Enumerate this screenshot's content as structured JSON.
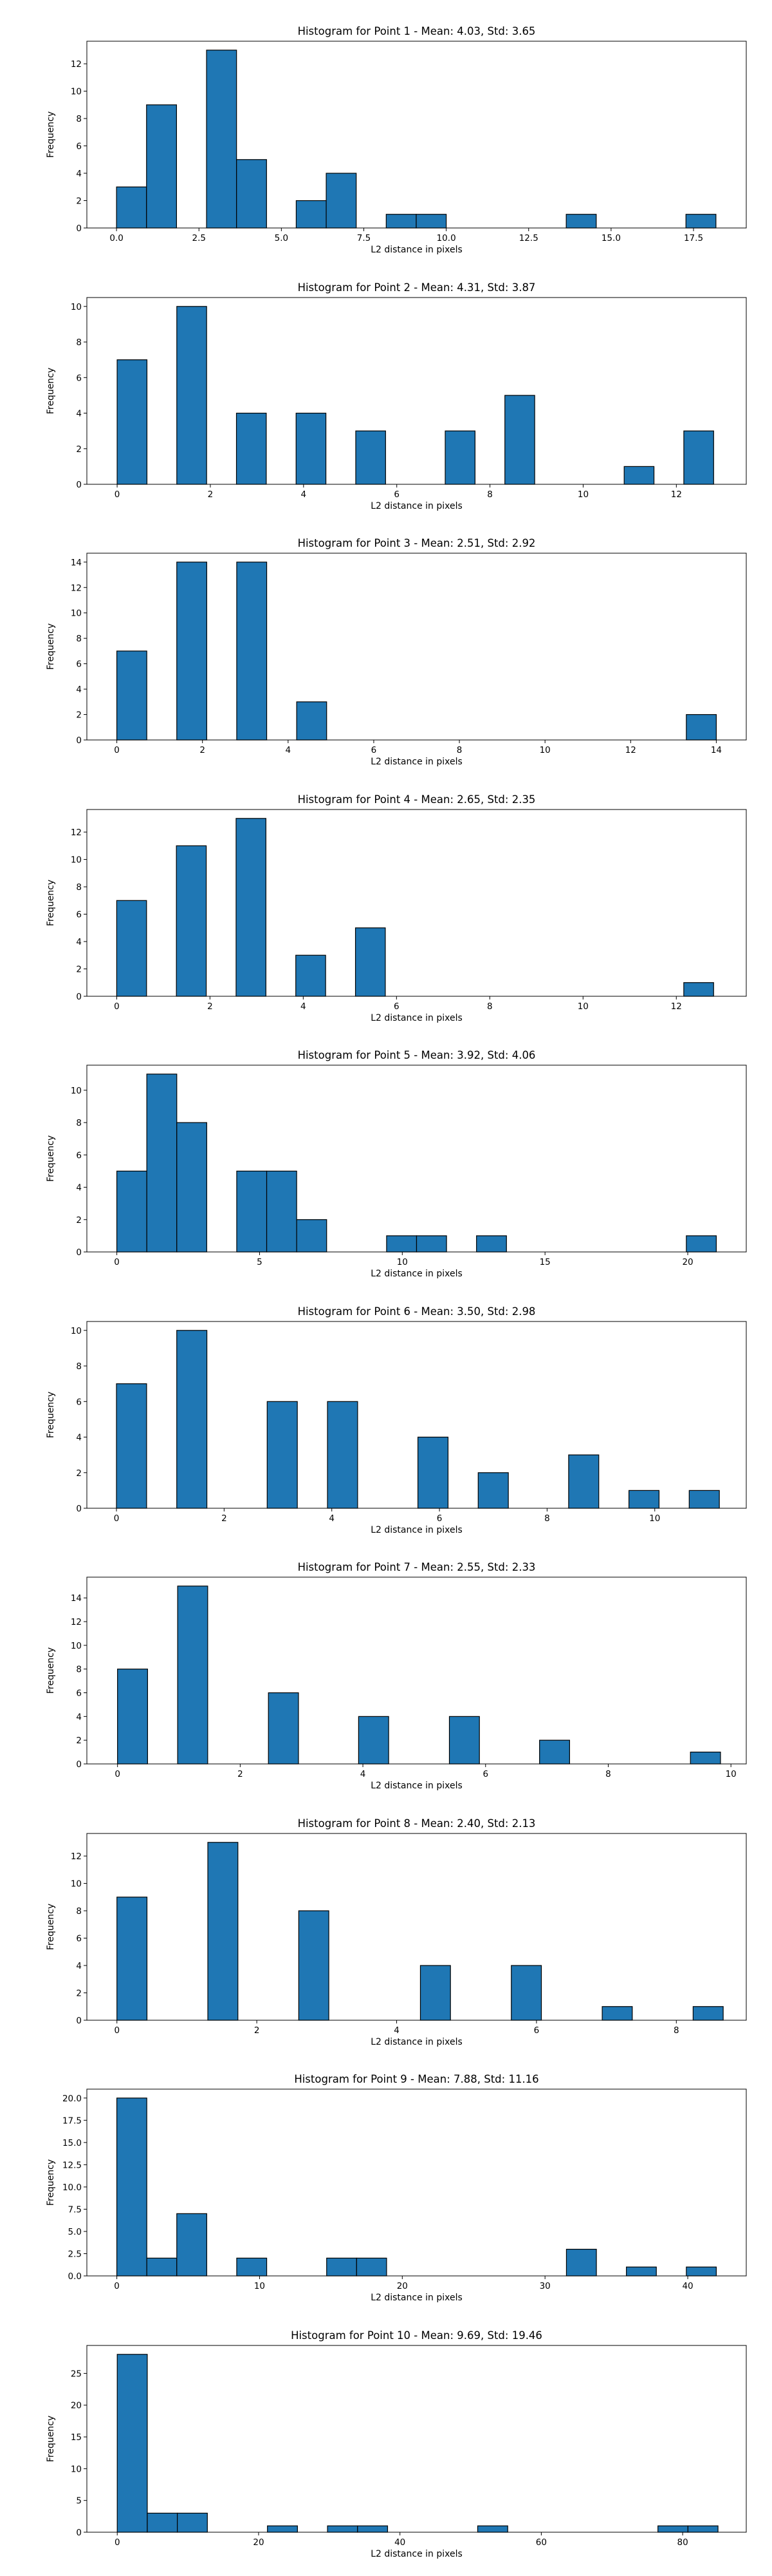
{
  "chart_data": [
    {
      "type": "bar",
      "title": "Histogram for Point 1 - Mean: 4.03, Std: 3.65",
      "xlabel": "L2 distance in pixels",
      "ylabel": "Frequency",
      "xlim": [
        -0.9,
        19.1
      ],
      "ylim": [
        0,
        13.65
      ],
      "xticks": [
        0,
        2.5,
        5,
        7.5,
        10,
        12.5,
        15,
        17.5
      ],
      "xtick_labels": [
        "0.0",
        "2.5",
        "5.0",
        "7.5",
        "10.0",
        "12.5",
        "15.0",
        "17.5"
      ],
      "yticks": [
        0,
        2,
        4,
        6,
        8,
        10,
        12
      ],
      "bins": [
        [
          0,
          0.91,
          3
        ],
        [
          0.91,
          1.82,
          9
        ],
        [
          2.73,
          3.64,
          13
        ],
        [
          3.64,
          4.55,
          5
        ],
        [
          5.45,
          6.36,
          2
        ],
        [
          6.36,
          7.27,
          4
        ],
        [
          8.18,
          9.09,
          1
        ],
        [
          9.09,
          10.0,
          1
        ],
        [
          13.64,
          14.55,
          1
        ],
        [
          17.27,
          18.18,
          1
        ]
      ]
    },
    {
      "type": "bar",
      "title": "Histogram for Point 2 - Mean: 4.31, Std: 3.87",
      "xlabel": "L2 distance in pixels",
      "ylabel": "Frequency",
      "xlim": [
        -0.65,
        13.5
      ],
      "ylim": [
        0,
        10.5
      ],
      "xticks": [
        0,
        2,
        4,
        6,
        8,
        10,
        12
      ],
      "xtick_labels": [
        "0",
        "2",
        "4",
        "6",
        "8",
        "10",
        "12"
      ],
      "yticks": [
        0,
        2,
        4,
        6,
        8,
        10
      ],
      "bins": [
        [
          0,
          0.64,
          7
        ],
        [
          1.28,
          1.92,
          10
        ],
        [
          2.56,
          3.2,
          4
        ],
        [
          3.84,
          4.48,
          4
        ],
        [
          5.12,
          5.76,
          3
        ],
        [
          7.04,
          7.68,
          3
        ],
        [
          8.32,
          8.96,
          5
        ],
        [
          10.88,
          11.52,
          1
        ],
        [
          12.16,
          12.8,
          3
        ]
      ]
    },
    {
      "type": "bar",
      "title": "Histogram for Point 3 - Mean: 2.51, Std: 2.92",
      "xlabel": "L2 distance in pixels",
      "ylabel": "Frequency",
      "xlim": [
        -0.7,
        14.7
      ],
      "ylim": [
        0,
        14.7
      ],
      "xticks": [
        0,
        2,
        4,
        6,
        8,
        10,
        12,
        14
      ],
      "xtick_labels": [
        "0",
        "2",
        "4",
        "6",
        "8",
        "10",
        "12",
        "14"
      ],
      "yticks": [
        0,
        2,
        4,
        6,
        8,
        10,
        12,
        14
      ],
      "bins": [
        [
          0,
          0.7,
          7
        ],
        [
          1.4,
          2.1,
          14
        ],
        [
          2.8,
          3.5,
          14
        ],
        [
          4.2,
          4.9,
          3
        ],
        [
          13.3,
          14.0,
          2
        ]
      ]
    },
    {
      "type": "bar",
      "title": "Histogram for Point 4 - Mean: 2.65, Std: 2.35",
      "xlabel": "L2 distance in pixels",
      "ylabel": "Frequency",
      "xlim": [
        -0.64,
        13.5
      ],
      "ylim": [
        0,
        13.65
      ],
      "xticks": [
        0,
        2,
        4,
        6,
        8,
        10,
        12
      ],
      "xtick_labels": [
        "0",
        "2",
        "4",
        "6",
        "8",
        "10",
        "12"
      ],
      "yticks": [
        0,
        2,
        4,
        6,
        8,
        10,
        12
      ],
      "bins": [
        [
          0,
          0.64,
          7
        ],
        [
          1.28,
          1.92,
          11
        ],
        [
          2.56,
          3.2,
          13
        ],
        [
          3.84,
          4.48,
          3
        ],
        [
          5.12,
          5.76,
          5
        ],
        [
          12.16,
          12.8,
          1
        ]
      ]
    },
    {
      "type": "bar",
      "title": "Histogram for Point 5 - Mean: 3.92, Std: 4.06",
      "xlabel": "L2 distance in pixels",
      "ylabel": "Frequency",
      "xlim": [
        -1.05,
        22.05
      ],
      "ylim": [
        0,
        11.55
      ],
      "xticks": [
        0,
        5,
        10,
        15,
        20
      ],
      "xtick_labels": [
        "0",
        "5",
        "10",
        "15",
        "20"
      ],
      "yticks": [
        0,
        2,
        4,
        6,
        8,
        10
      ],
      "bins": [
        [
          0,
          1.05,
          5
        ],
        [
          1.05,
          2.1,
          11
        ],
        [
          2.1,
          3.15,
          8
        ],
        [
          4.2,
          5.25,
          5
        ],
        [
          5.25,
          6.3,
          5
        ],
        [
          6.3,
          7.35,
          2
        ],
        [
          9.45,
          10.5,
          1
        ],
        [
          10.5,
          11.55,
          1
        ],
        [
          12.6,
          13.65,
          1
        ],
        [
          19.95,
          21.0,
          1
        ]
      ]
    },
    {
      "type": "bar",
      "title": "Histogram for Point 6 - Mean: 3.50, Std: 2.98",
      "xlabel": "L2 distance in pixels",
      "ylabel": "Frequency",
      "xlim": [
        -0.55,
        11.7
      ],
      "ylim": [
        0,
        10.5
      ],
      "xticks": [
        0,
        2,
        4,
        6,
        8,
        10
      ],
      "xtick_labels": [
        "0",
        "2",
        "4",
        "6",
        "8",
        "10"
      ],
      "yticks": [
        0,
        2,
        4,
        6,
        8,
        10
      ],
      "bins": [
        [
          0,
          0.56,
          7
        ],
        [
          1.12,
          1.68,
          10
        ],
        [
          2.8,
          3.36,
          6
        ],
        [
          3.92,
          4.48,
          6
        ],
        [
          5.6,
          6.16,
          4
        ],
        [
          6.72,
          7.28,
          2
        ],
        [
          8.4,
          8.96,
          3
        ],
        [
          9.52,
          10.08,
          1
        ],
        [
          10.64,
          11.2,
          1
        ]
      ]
    },
    {
      "type": "bar",
      "title": "Histogram for Point 7 - Mean: 2.55, Std: 2.33",
      "xlabel": "L2 distance in pixels",
      "ylabel": "Frequency",
      "xlim": [
        -0.5,
        10.25
      ],
      "ylim": [
        0,
        15.75
      ],
      "xticks": [
        0,
        2,
        4,
        6,
        8,
        10
      ],
      "xtick_labels": [
        "0",
        "2",
        "4",
        "6",
        "8",
        "10"
      ],
      "yticks": [
        0,
        2,
        4,
        6,
        8,
        10,
        12,
        14
      ],
      "bins": [
        [
          0,
          0.49,
          8
        ],
        [
          0.98,
          1.47,
          15
        ],
        [
          2.46,
          2.95,
          6
        ],
        [
          3.93,
          4.42,
          4
        ],
        [
          5.41,
          5.9,
          4
        ],
        [
          6.88,
          7.37,
          2
        ],
        [
          9.34,
          9.83,
          1
        ]
      ]
    },
    {
      "type": "bar",
      "title": "Histogram for Point 8 - Mean: 2.40, Std: 2.13",
      "xlabel": "L2 distance in pixels",
      "ylabel": "Frequency",
      "xlim": [
        -0.43,
        9.0
      ],
      "ylim": [
        0,
        13.65
      ],
      "xticks": [
        0,
        2,
        4,
        6,
        8
      ],
      "xtick_labels": [
        "0",
        "2",
        "4",
        "6",
        "8"
      ],
      "yticks": [
        0,
        2,
        4,
        6,
        8,
        10,
        12
      ],
      "bins": [
        [
          0,
          0.43,
          9
        ],
        [
          1.3,
          1.73,
          13
        ],
        [
          2.6,
          3.03,
          8
        ],
        [
          4.34,
          4.77,
          4
        ],
        [
          5.64,
          6.07,
          4
        ],
        [
          6.94,
          7.37,
          1
        ],
        [
          8.24,
          8.67,
          1
        ]
      ]
    },
    {
      "type": "bar",
      "title": "Histogram for Point 9 - Mean: 7.88, Std: 11.16",
      "xlabel": "L2 distance in pixels",
      "ylabel": "Frequency",
      "xlim": [
        -2.1,
        44.1
      ],
      "ylim": [
        0,
        21.0
      ],
      "xticks": [
        0,
        10,
        20,
        30,
        40
      ],
      "xtick_labels": [
        "0",
        "10",
        "20",
        "30",
        "40"
      ],
      "yticks": [
        0,
        2.5,
        5,
        7.5,
        10,
        12.5,
        15,
        17.5,
        20
      ],
      "ytick_labels": [
        "0.0",
        "2.5",
        "5.0",
        "7.5",
        "10.0",
        "12.5",
        "15.0",
        "17.5",
        "20.0"
      ],
      "bins": [
        [
          0,
          2.1,
          20
        ],
        [
          2.1,
          4.2,
          2
        ],
        [
          4.2,
          6.3,
          7
        ],
        [
          8.4,
          10.5,
          2
        ],
        [
          14.7,
          16.8,
          2
        ],
        [
          16.8,
          18.9,
          2
        ],
        [
          31.5,
          33.6,
          3
        ],
        [
          35.7,
          37.8,
          1
        ],
        [
          39.9,
          42.0,
          1
        ]
      ]
    },
    {
      "type": "bar",
      "title": "Histogram for Point 10 - Mean: 9.69, Std: 19.46",
      "xlabel": "L2 distance in pixels",
      "ylabel": "Frequency",
      "xlim": [
        -4.3,
        89.0
      ],
      "ylim": [
        0,
        29.4
      ],
      "xticks": [
        0,
        20,
        40,
        60,
        80
      ],
      "xtick_labels": [
        "0",
        "20",
        "40",
        "60",
        "80"
      ],
      "yticks": [
        0,
        5,
        10,
        15,
        20,
        25
      ],
      "bins": [
        [
          0,
          4.25,
          28
        ],
        [
          4.25,
          8.5,
          3
        ],
        [
          8.5,
          12.75,
          3
        ],
        [
          21.25,
          25.5,
          1
        ],
        [
          29.75,
          34.0,
          1
        ],
        [
          34.0,
          38.25,
          1
        ],
        [
          51.0,
          55.25,
          1
        ],
        [
          76.5,
          80.75,
          1
        ],
        [
          80.75,
          85.0,
          1
        ]
      ]
    }
  ]
}
